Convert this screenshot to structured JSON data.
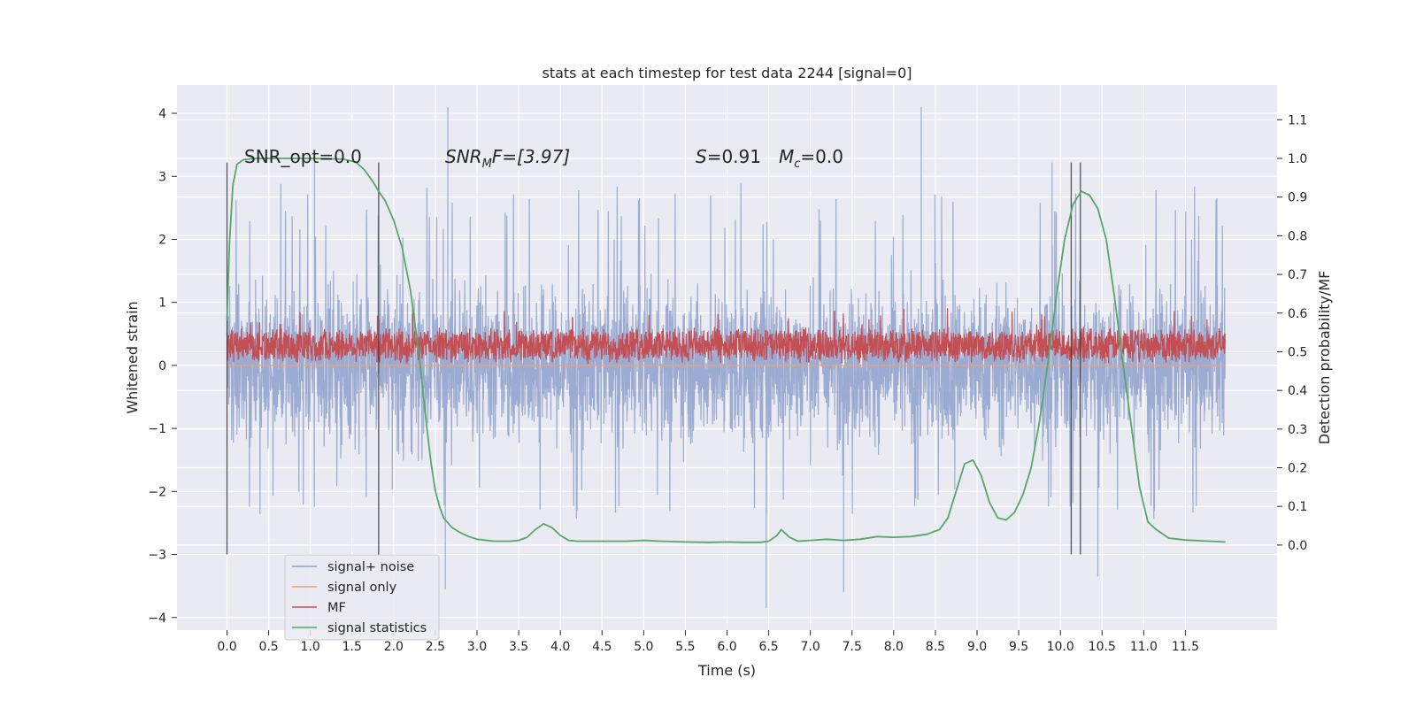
{
  "chart_data": {
    "type": "line",
    "title": "stats at each timestep for test data 2244 [signal=0]",
    "xlabel": "Time (s)",
    "ylabel_left": "Whitened strain",
    "ylabel_right": "Detection probability/MF",
    "xlim": [
      -0.6,
      12.6
    ],
    "ylim_left": [
      -4.2,
      4.45
    ],
    "ylim_right": [
      -0.22,
      1.19
    ],
    "xticks": [
      "0.0",
      "0.5",
      "1.0",
      "1.5",
      "2.0",
      "2.5",
      "3.0",
      "3.5",
      "4.0",
      "4.5",
      "5.0",
      "5.5",
      "6.0",
      "6.5",
      "7.0",
      "7.5",
      "8.0",
      "8.5",
      "9.0",
      "9.5",
      "10.0",
      "10.5",
      "11.0",
      "11.5"
    ],
    "yticks_left": [
      "−4",
      "−3",
      "−2",
      "−1",
      "0",
      "1",
      "2",
      "3",
      "4"
    ],
    "yticks_right": [
      "0.0",
      "0.1",
      "0.2",
      "0.3",
      "0.4",
      "0.5",
      "0.6",
      "0.7",
      "0.8",
      "0.9",
      "1.0",
      "1.1"
    ],
    "grid": true,
    "legend_placement": "lower-left",
    "annotations": {
      "snr_opt": "SNR_opt=0.0",
      "snr_mf_base": "SNR",
      "snr_mf_sub": "M",
      "snr_mf_rest": "F=[3.97]",
      "s_base": "S",
      "s_rest": "=0.91",
      "mc_base": "M",
      "mc_sub": "c",
      "mc_rest": "=0.0"
    },
    "vlines": [
      0.0,
      1.82,
      10.13,
      10.24
    ],
    "vline_range": [
      -3.0,
      3.22
    ],
    "series": [
      {
        "name": "signal+ noise",
        "axis": "left",
        "color": "#8da0cb",
        "x_range": [
          0.0,
          11.98
        ],
        "envelope": {
          "typical_low": -1.9,
          "typical_high": 1.9,
          "peak_high": 4.1,
          "peak_low": -3.85
        },
        "spikes": [
          [
            2.65,
            4.1
          ],
          [
            8.33,
            4.1
          ],
          [
            6.47,
            -3.85
          ],
          [
            7.4,
            -3.6
          ],
          [
            2.62,
            -3.55
          ],
          [
            10.45,
            -3.35
          ],
          [
            1.05,
            3.25
          ],
          [
            9.9,
            3.22
          ]
        ]
      },
      {
        "name": "signal only",
        "axis": "left",
        "color": "#e8a07f",
        "x_range": [
          0.0,
          11.98
        ],
        "values_constant": 0.0
      },
      {
        "name": "MF",
        "axis": "left",
        "color": "#c44e52",
        "x_range": [
          0.0,
          11.98
        ],
        "envelope": {
          "typical_low": 0.02,
          "typical_high": 0.65,
          "peak_high": 0.95
        }
      },
      {
        "name": "signal statistics",
        "axis": "right",
        "color": "#55a868",
        "x": [
          0.0,
          0.03,
          0.07,
          0.12,
          0.2,
          0.35,
          0.5,
          0.8,
          1.0,
          1.2,
          1.4,
          1.55,
          1.65,
          1.75,
          1.82,
          1.9,
          2.0,
          2.1,
          2.2,
          2.3,
          2.35,
          2.4,
          2.45,
          2.5,
          2.55,
          2.6,
          2.7,
          2.8,
          2.9,
          3.0,
          3.2,
          3.4,
          3.5,
          3.6,
          3.7,
          3.8,
          3.9,
          4.0,
          4.1,
          4.2,
          4.4,
          4.6,
          4.8,
          5.0,
          5.2,
          5.5,
          5.8,
          6.0,
          6.2,
          6.4,
          6.5,
          6.6,
          6.65,
          6.75,
          6.85,
          7.0,
          7.2,
          7.4,
          7.6,
          7.8,
          8.0,
          8.2,
          8.4,
          8.55,
          8.65,
          8.75,
          8.85,
          8.95,
          9.05,
          9.15,
          9.25,
          9.35,
          9.45,
          9.55,
          9.65,
          9.75,
          9.85,
          9.95,
          10.05,
          10.15,
          10.25,
          10.35,
          10.45,
          10.55,
          10.65,
          10.75,
          10.85,
          10.95,
          11.05,
          11.15,
          11.3,
          11.5,
          11.7,
          11.9,
          11.98
        ],
        "y": [
          0.58,
          0.78,
          0.93,
          0.985,
          0.997,
          1.0,
          1.0,
          1.0,
          1.0,
          0.999,
          0.998,
          0.99,
          0.97,
          0.94,
          0.915,
          0.89,
          0.84,
          0.77,
          0.66,
          0.5,
          0.4,
          0.3,
          0.21,
          0.14,
          0.1,
          0.07,
          0.045,
          0.032,
          0.022,
          0.015,
          0.01,
          0.01,
          0.012,
          0.02,
          0.04,
          0.055,
          0.045,
          0.025,
          0.012,
          0.01,
          0.01,
          0.01,
          0.01,
          0.012,
          0.01,
          0.008,
          0.007,
          0.008,
          0.007,
          0.007,
          0.01,
          0.025,
          0.04,
          0.02,
          0.01,
          0.012,
          0.015,
          0.012,
          0.015,
          0.022,
          0.02,
          0.022,
          0.028,
          0.04,
          0.07,
          0.14,
          0.21,
          0.22,
          0.18,
          0.11,
          0.07,
          0.065,
          0.085,
          0.13,
          0.2,
          0.32,
          0.47,
          0.64,
          0.79,
          0.88,
          0.915,
          0.905,
          0.87,
          0.79,
          0.64,
          0.47,
          0.31,
          0.15,
          0.06,
          0.04,
          0.018,
          0.013,
          0.011,
          0.009,
          0.008
        ]
      }
    ]
  }
}
